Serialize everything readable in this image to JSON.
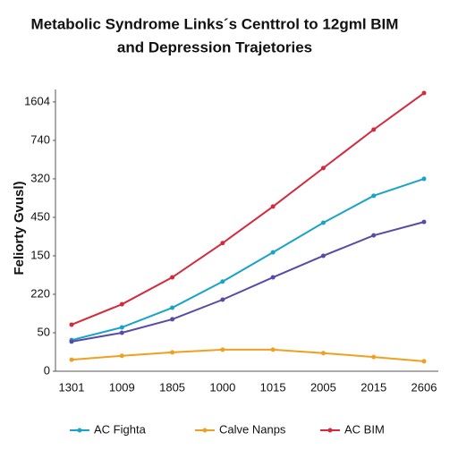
{
  "chart_data": {
    "type": "line",
    "title": [
      "Metabolic Syndrome Links´s Centtrol to 12gml BIM",
      "and Depression Trajetories"
    ],
    "y_label": "Feliorty Gvusl)",
    "categories": [
      "1301",
      "1009",
      "1805",
      "1000",
      "1015",
      "2005",
      "2015",
      "2606"
    ],
    "series": [
      {
        "name": "AC Fighta",
        "color": "#1aa3c8",
        "values": [
          0.81,
          1.14,
          1.65,
          2.33,
          3.09,
          3.86,
          4.56,
          5.0
        ]
      },
      {
        "name": "Calve Nanps",
        "color": "#f0a020",
        "values": [
          0.3,
          0.4,
          0.49,
          0.56,
          0.56,
          0.47,
          0.37,
          0.26
        ]
      },
      {
        "name": "AC BIM",
        "color": "#d42a3c",
        "values": [
          1.21,
          1.74,
          2.44,
          3.33,
          4.28,
          5.28,
          6.28,
          7.23
        ]
      },
      {
        "color": "#5a4aa8",
        "values": [
          0.77,
          1.0,
          1.35,
          1.86,
          2.44,
          3.0,
          3.53,
          3.88
        ]
      }
    ],
    "ylim": [
      0,
      7.3
    ],
    "yticks": [
      {
        "value": 0,
        "label": "0"
      },
      {
        "value": 1,
        "label": "50"
      },
      {
        "value": 2,
        "label": "220"
      },
      {
        "value": 3,
        "label": "150"
      },
      {
        "value": 4,
        "label": "450"
      },
      {
        "value": 5,
        "label": "320"
      },
      {
        "value": 6,
        "label": "740"
      },
      {
        "value": 7,
        "label": "1604"
      }
    ],
    "legend": "bottom"
  }
}
